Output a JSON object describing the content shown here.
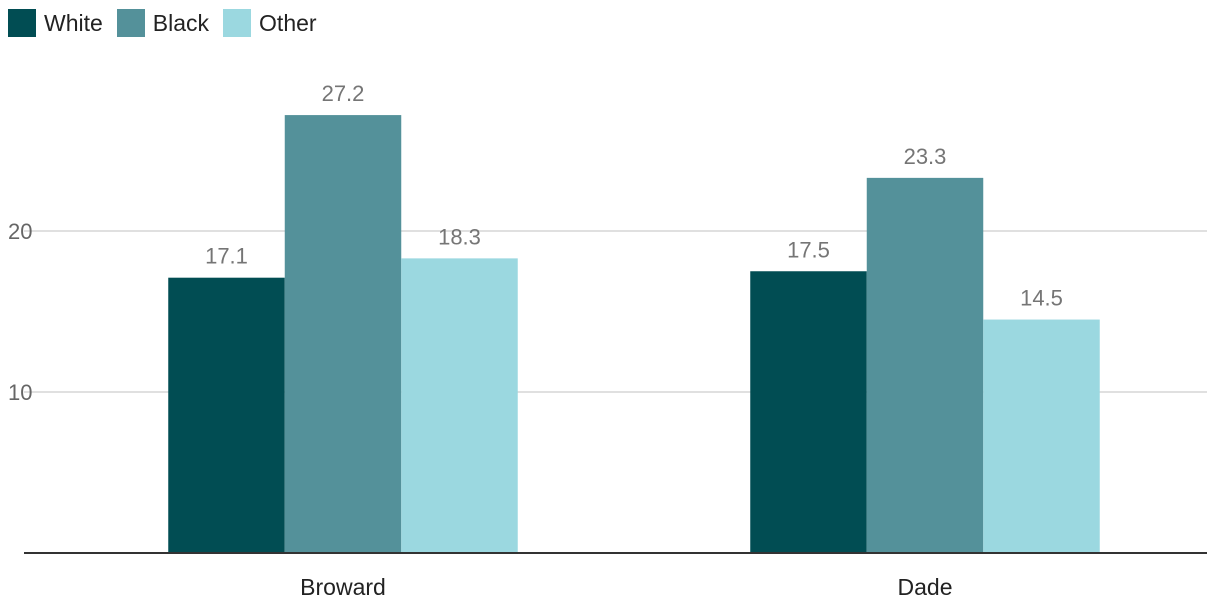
{
  "chart_data": {
    "type": "bar",
    "categories": [
      "Broward",
      "Dade"
    ],
    "series": [
      {
        "name": "White",
        "values": [
          17.1,
          17.5
        ],
        "color": "#014d53"
      },
      {
        "name": "Black",
        "values": [
          27.2,
          23.3
        ],
        "color": "#54919a"
      },
      {
        "name": "Other",
        "values": [
          18.3,
          14.5
        ],
        "color": "#9bd8e0"
      }
    ],
    "y_ticks": [
      10,
      20
    ],
    "ylim": [
      0,
      30
    ],
    "grid": true,
    "legend_position": "top-left"
  }
}
